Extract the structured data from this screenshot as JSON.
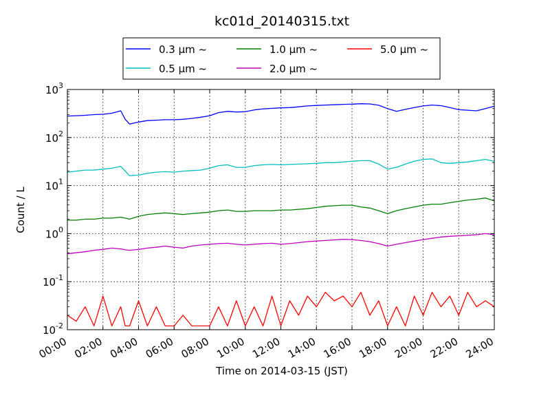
{
  "chart_data": {
    "type": "line",
    "title": "kc01d_20140315.txt",
    "xlabel": "Time on 2014-03-15 (JST)",
    "ylabel": "Count / L",
    "xscale": "linear",
    "yscale": "log",
    "xlim_hours": [
      0,
      24
    ],
    "ylim": [
      0.01,
      1000
    ],
    "grid": true,
    "legend_position": "top-center (above axes, 3 columns)",
    "x_tick_labels": [
      "00:00",
      "02:00",
      "04:00",
      "06:00",
      "08:00",
      "10:00",
      "12:00",
      "14:00",
      "16:00",
      "18:00",
      "20:00",
      "22:00",
      "24:00"
    ],
    "y_tick_labels": [
      {
        "base": "10",
        "exp": "-2"
      },
      {
        "base": "10",
        "exp": "-1"
      },
      {
        "base": "10",
        "exp": "0"
      },
      {
        "base": "10",
        "exp": "1"
      },
      {
        "base": "10",
        "exp": "2"
      },
      {
        "base": "10",
        "exp": "3"
      }
    ],
    "x_hours": [
      0,
      0.5,
      1,
      1.5,
      2,
      2.5,
      3,
      3.25,
      3.5,
      4,
      4.5,
      5,
      5.5,
      6,
      6.5,
      7,
      7.5,
      8,
      8.5,
      9,
      9.5,
      10,
      10.5,
      11,
      11.5,
      12,
      12.5,
      13,
      13.5,
      14,
      14.5,
      15,
      15.5,
      16,
      16.5,
      17,
      17.5,
      18,
      18.5,
      19,
      19.5,
      20,
      20.5,
      21,
      21.5,
      22,
      22.5,
      23,
      23.5,
      24
    ],
    "series": [
      {
        "name": "0.3 μm ~",
        "color": "#0000ff",
        "values": [
          280,
          285,
          290,
          300,
          305,
          320,
          360,
          240,
          190,
          210,
          225,
          230,
          235,
          235,
          240,
          250,
          265,
          285,
          330,
          350,
          340,
          345,
          375,
          395,
          405,
          415,
          420,
          435,
          455,
          465,
          475,
          480,
          490,
          495,
          505,
          500,
          470,
          400,
          350,
          385,
          420,
          455,
          475,
          460,
          420,
          380,
          370,
          360,
          400,
          450
        ]
      },
      {
        "name": "0.5 μm ~",
        "color": "#00bfbf",
        "values": [
          19,
          20,
          21,
          21,
          22,
          23,
          25,
          20,
          16,
          16.5,
          18,
          19,
          19.5,
          19,
          20,
          20.5,
          21,
          23,
          26,
          27,
          24,
          24,
          26,
          27,
          27.5,
          27,
          27.5,
          28,
          28.5,
          29,
          30,
          30,
          31,
          32,
          33,
          33,
          28,
          22,
          24,
          28,
          32,
          35,
          36,
          30,
          29,
          30,
          31,
          33,
          35,
          32
        ]
      },
      {
        "name": "1.0 μm ~",
        "color": "#008000",
        "values": [
          1.9,
          1.9,
          2.0,
          2.0,
          2.1,
          2.1,
          2.2,
          2.1,
          2.0,
          2.3,
          2.5,
          2.6,
          2.7,
          2.6,
          2.5,
          2.6,
          2.7,
          2.8,
          3.0,
          3.1,
          2.9,
          2.9,
          3.0,
          3.0,
          3.0,
          3.1,
          3.1,
          3.2,
          3.3,
          3.5,
          3.7,
          3.8,
          3.9,
          3.9,
          3.6,
          3.4,
          3.0,
          2.6,
          3.0,
          3.3,
          3.6,
          3.9,
          4.1,
          4.1,
          4.4,
          4.7,
          5.0,
          5.2,
          5.5,
          4.8
        ]
      },
      {
        "name": "2.0 μm ~",
        "color": "#bf00bf",
        "values": [
          0.38,
          0.4,
          0.42,
          0.45,
          0.47,
          0.5,
          0.48,
          0.46,
          0.45,
          0.47,
          0.5,
          0.52,
          0.55,
          0.52,
          0.5,
          0.55,
          0.58,
          0.6,
          0.62,
          0.63,
          0.6,
          0.58,
          0.6,
          0.62,
          0.63,
          0.6,
          0.62,
          0.65,
          0.68,
          0.7,
          0.72,
          0.74,
          0.76,
          0.75,
          0.72,
          0.68,
          0.62,
          0.55,
          0.6,
          0.65,
          0.7,
          0.75,
          0.8,
          0.85,
          0.88,
          0.9,
          0.92,
          0.95,
          1.0,
          0.95
        ]
      },
      {
        "name": "5.0 μm ~",
        "color": "#ff0000",
        "values": [
          0.02,
          0.015,
          0.03,
          0.012,
          0.05,
          0.012,
          0.03,
          0.012,
          0.012,
          0.04,
          0.012,
          0.03,
          0.012,
          0.012,
          0.02,
          0.012,
          0.012,
          0.012,
          0.03,
          0.012,
          0.04,
          0.012,
          0.03,
          0.012,
          0.05,
          0.012,
          0.04,
          0.02,
          0.05,
          0.03,
          0.06,
          0.04,
          0.05,
          0.03,
          0.06,
          0.02,
          0.04,
          0.012,
          0.03,
          0.012,
          0.05,
          0.02,
          0.06,
          0.03,
          0.05,
          0.02,
          0.06,
          0.03,
          0.04,
          0.03
        ]
      }
    ]
  }
}
